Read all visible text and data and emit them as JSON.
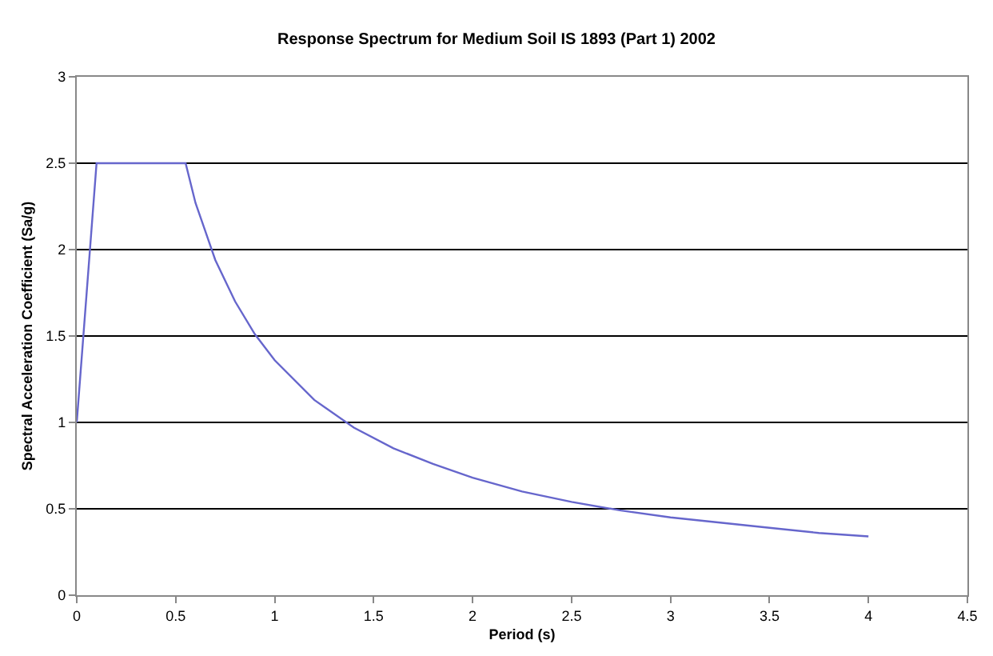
{
  "chart_data": {
    "type": "line",
    "title": "Response Spectrum for Medium Soil IS 1893 (Part 1) 2002",
    "xlabel": "Period (s)",
    "ylabel": "Spectral Acceleration Coefficient (Sa/g)",
    "x": [
      0,
      0.1,
      0.55,
      0.6,
      0.7,
      0.8,
      0.9,
      1.0,
      1.2,
      1.4,
      1.6,
      1.8,
      2.0,
      2.25,
      2.5,
      2.75,
      3.0,
      3.25,
      3.5,
      3.75,
      4.0
    ],
    "series": [
      {
        "color": "#6666cc",
        "values": [
          1.0,
          2.5,
          2.5,
          2.27,
          1.94,
          1.7,
          1.51,
          1.36,
          1.13,
          0.97,
          0.85,
          0.76,
          0.68,
          0.6,
          0.54,
          0.49,
          0.45,
          0.42,
          0.39,
          0.36,
          0.34
        ]
      }
    ],
    "xlim": [
      0,
      4.5
    ],
    "xticks": [
      0,
      0.5,
      1,
      1.5,
      2,
      2.5,
      3,
      3.5,
      4,
      4.5
    ],
    "ylim": [
      0,
      3
    ],
    "yticks": [
      0,
      0.5,
      1,
      1.5,
      2,
      2.5,
      3
    ],
    "grid": "y",
    "marker": "none",
    "line_style": "solid"
  }
}
